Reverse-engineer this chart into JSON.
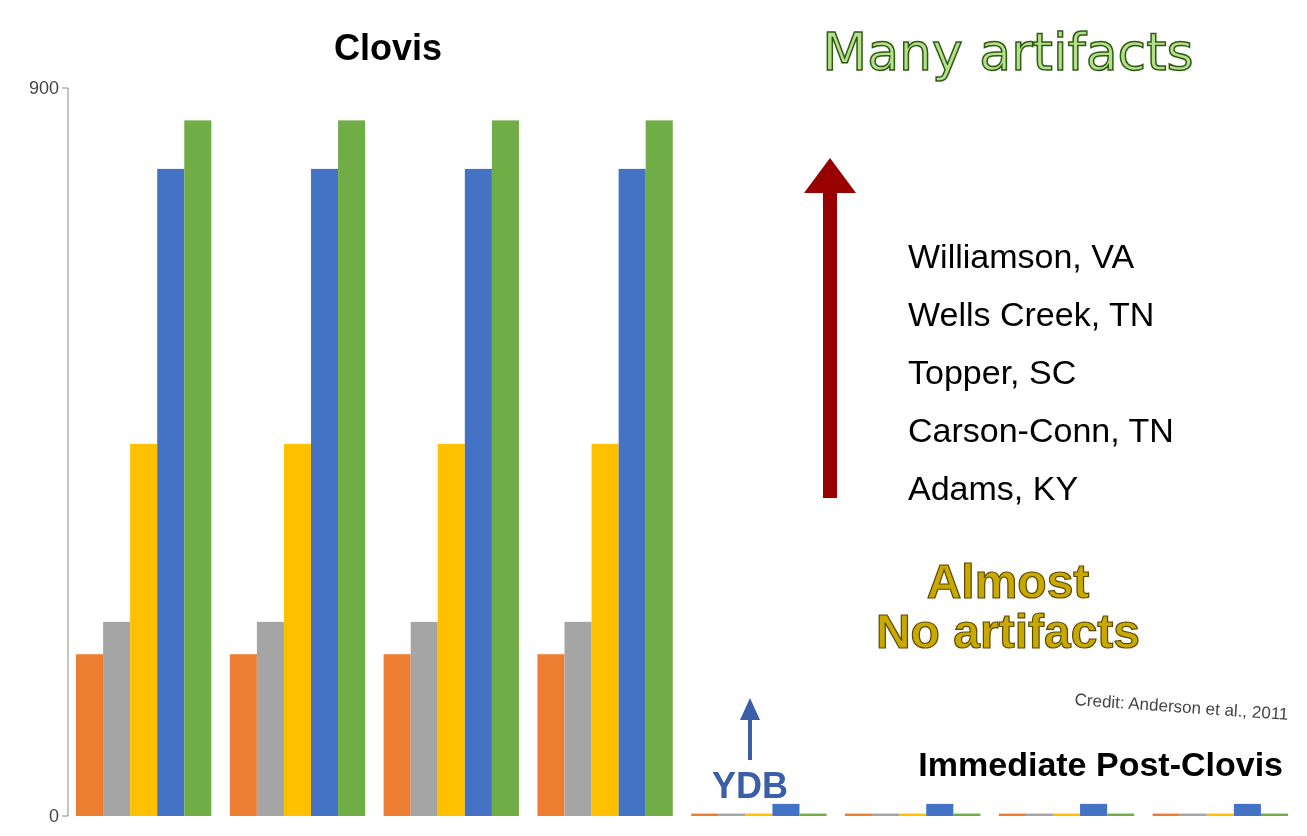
{
  "chart_data": {
    "type": "bar",
    "categories": [
      null,
      null,
      null,
      null,
      null,
      null,
      null,
      null
    ],
    "series": [
      {
        "color": "#ed7d31",
        "values": [
          200,
          200,
          200,
          200,
          3,
          3,
          3,
          3
        ]
      },
      {
        "color": "#a5a5a5",
        "values": [
          240,
          240,
          240,
          240,
          3,
          3,
          3,
          3
        ]
      },
      {
        "color": "#ffc000",
        "values": [
          460,
          460,
          460,
          460,
          3,
          3,
          3,
          3
        ]
      },
      {
        "color": "#4472c4",
        "values": [
          800,
          800,
          800,
          800,
          15,
          15,
          15,
          15
        ]
      },
      {
        "color": "#70ad47",
        "values": [
          860,
          860,
          860,
          860,
          3,
          3,
          3,
          3
        ]
      }
    ],
    "ylim": [
      0,
      900
    ],
    "yticks": [
      0,
      900
    ],
    "annotations": [
      "Many artifacts",
      "Clovis",
      "Williamson, VA",
      "Wells Creek, TN",
      "Topper, SC",
      "Carson-Conn, TN",
      "Adams, KY",
      "Almost No artifacts",
      "Credit: Anderson et al., 2011",
      "Immediate Post-Clovis",
      "YDB"
    ],
    "grid": false
  }
}
